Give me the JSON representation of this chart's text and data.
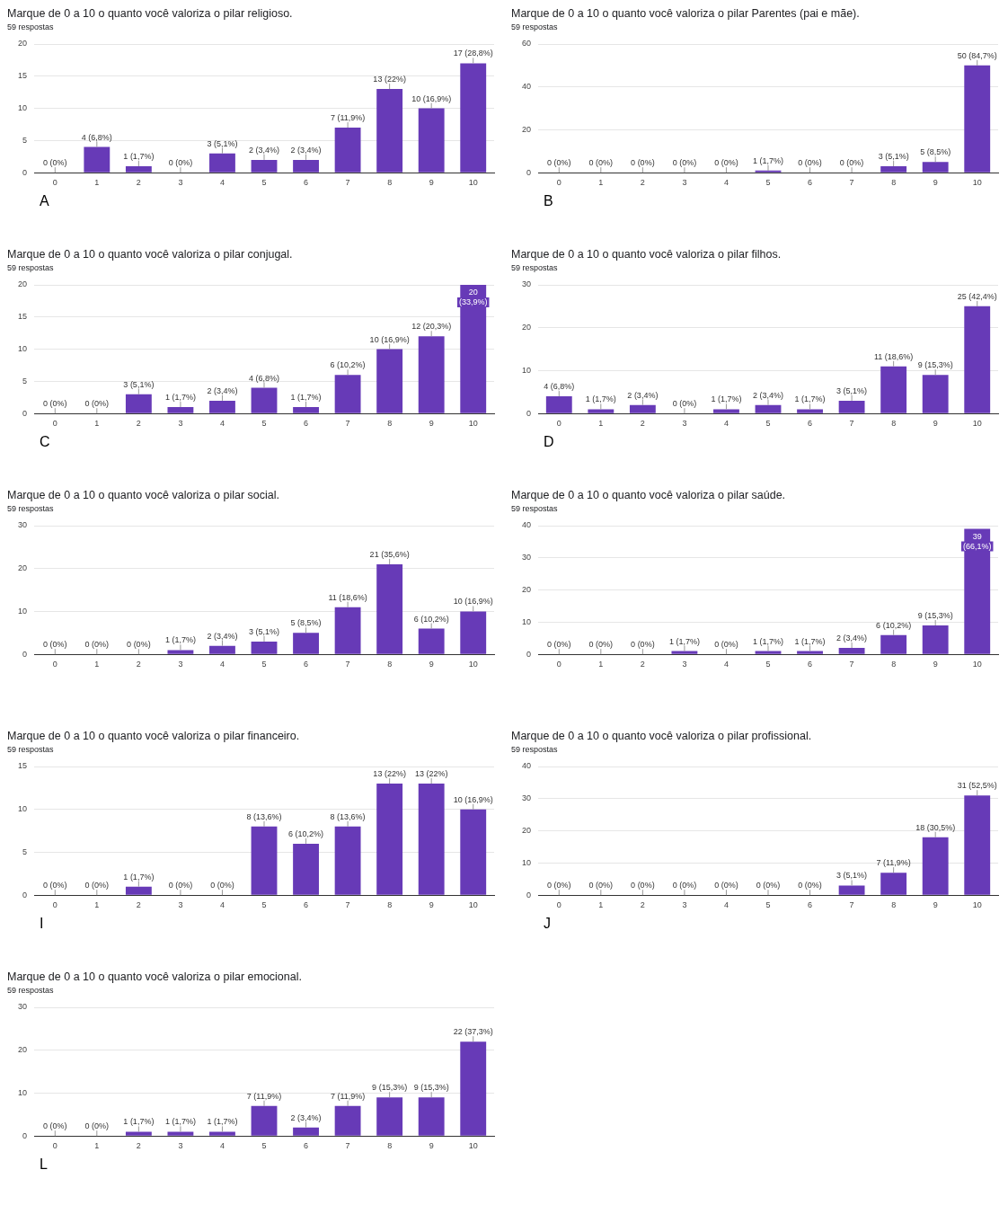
{
  "chart_data": [
    {
      "type": "bar",
      "title": "Marque de 0 a 10 o quanto você valoriza o pilar religioso.",
      "subtitle": "59 respostas",
      "categories": [
        "0",
        "1",
        "2",
        "3",
        "4",
        "5",
        "6",
        "7",
        "8",
        "9",
        "10"
      ],
      "values": [
        0,
        4,
        1,
        0,
        3,
        2,
        2,
        7,
        13,
        10,
        17
      ],
      "value_labels": [
        "0 (0%)",
        "4 (6,8%)",
        "1 (1,7%)",
        "0 (0%)",
        "3 (5,1%)",
        "2 (3,4%)",
        "2 (3,4%)",
        "7 (11,9%)",
        "13 (22%)",
        "10 (16,9%)",
        "17 (28,8%)"
      ],
      "color": "#673ab7",
      "ylim": [
        0,
        20
      ],
      "yticks": [
        0,
        5,
        10,
        15,
        20
      ],
      "grid": "y",
      "legend": false,
      "annotations": [
        "A"
      ]
    },
    {
      "type": "bar",
      "title": "Marque de 0 a 10 o quanto você valoriza o pilar Parentes (pai e mãe).",
      "subtitle": "59 respostas",
      "categories": [
        "0",
        "1",
        "2",
        "3",
        "4",
        "5",
        "6",
        "7",
        "8",
        "9",
        "10"
      ],
      "values": [
        0,
        0,
        0,
        0,
        0,
        1,
        0,
        0,
        3,
        5,
        50
      ],
      "value_labels": [
        "0 (0%)",
        "0 (0%)",
        "0 (0%)",
        "0 (0%)",
        "0 (0%)",
        "1 (1,7%)",
        "0 (0%)",
        "0 (0%)",
        "3 (5,1%)",
        "5 (8,5%)",
        "50 (84,7%)"
      ],
      "color": "#673ab7",
      "ylim": [
        0,
        60
      ],
      "yticks": [
        0,
        20,
        40,
        60
      ],
      "grid": "y",
      "legend": false,
      "annotations": [
        "B"
      ]
    },
    {
      "type": "bar",
      "title": "Marque de 0 a 10 o quanto você valoriza o pilar conjugal.",
      "subtitle": "59 respostas",
      "categories": [
        "0",
        "1",
        "2",
        "3",
        "4",
        "5",
        "6",
        "7",
        "8",
        "9",
        "10"
      ],
      "values": [
        0,
        0,
        3,
        1,
        2,
        4,
        1,
        6,
        10,
        12,
        20
      ],
      "value_labels": [
        "0 (0%)",
        "0 (0%)",
        "3 (5,1%)",
        "1 (1,7%)",
        "2 (3,4%)",
        "4 (6,8%)",
        "1 (1,7%)",
        "6 (10,2%)",
        "10 (16,9%)",
        "12 (20,3%)",
        "20 (33,9%)"
      ],
      "color": "#673ab7",
      "ylim": [
        0,
        20
      ],
      "yticks": [
        0,
        5,
        10,
        15,
        20
      ],
      "grid": "y",
      "legend": false,
      "annotations": [
        "C"
      ]
    },
    {
      "type": "bar",
      "title": "Marque de 0 a 10 o quanto você valoriza o pilar filhos.",
      "subtitle": "59 respostas",
      "categories": [
        "0",
        "1",
        "2",
        "3",
        "4",
        "5",
        "6",
        "7",
        "8",
        "9",
        "10"
      ],
      "values": [
        4,
        1,
        2,
        0,
        1,
        2,
        1,
        3,
        11,
        9,
        25
      ],
      "value_labels": [
        "4 (6,8%)",
        "1 (1,7%)",
        "2 (3,4%)",
        "0 (0%)",
        "1 (1,7%)",
        "2 (3,4%)",
        "1 (1,7%)",
        "3 (5,1%)",
        "11 (18,6%)",
        "9 (15,3%)",
        "25 (42,4%)"
      ],
      "color": "#673ab7",
      "ylim": [
        0,
        30
      ],
      "yticks": [
        0,
        10,
        20,
        30
      ],
      "grid": "y",
      "legend": false,
      "annotations": [
        "D"
      ]
    },
    {
      "type": "bar",
      "title": "Marque de 0 a 10 o quanto você valoriza o pilar social.",
      "subtitle": "59 respostas",
      "categories": [
        "0",
        "1",
        "2",
        "3",
        "4",
        "5",
        "6",
        "7",
        "8",
        "9",
        "10"
      ],
      "values": [
        0,
        0,
        0,
        1,
        2,
        3,
        5,
        11,
        21,
        6,
        10
      ],
      "value_labels": [
        "0 (0%)",
        "0 (0%)",
        "0 (0%)",
        "1 (1,7%)",
        "2 (3,4%)",
        "3 (5,1%)",
        "5 (8,5%)",
        "11 (18,6%)",
        "21 (35,6%)",
        "6 (10,2%)",
        "10 (16,9%)"
      ],
      "color": "#673ab7",
      "ylim": [
        0,
        30
      ],
      "yticks": [
        0,
        10,
        20,
        30
      ],
      "grid": "y",
      "legend": false
    },
    {
      "type": "bar",
      "title": "Marque de 0 a 10 o quanto você valoriza o pilar saúde.",
      "subtitle": "59 respostas",
      "categories": [
        "0",
        "1",
        "2",
        "3",
        "4",
        "5",
        "6",
        "7",
        "8",
        "9",
        "10"
      ],
      "values": [
        0,
        0,
        0,
        1,
        0,
        1,
        1,
        2,
        6,
        9,
        39
      ],
      "value_labels": [
        "0 (0%)",
        "0 (0%)",
        "0 (0%)",
        "1 (1,7%)",
        "0 (0%)",
        "1 (1,7%)",
        "1 (1,7%)",
        "2 (3,4%)",
        "6 (10,2%)",
        "9 (15,3%)",
        "39 (66,1%)"
      ],
      "color": "#673ab7",
      "ylim": [
        0,
        40
      ],
      "yticks": [
        0,
        10,
        20,
        30,
        40
      ],
      "grid": "y",
      "legend": false
    },
    {
      "type": "bar",
      "title": "Marque de 0 a 10 o quanto você valoriza o pilar financeiro.",
      "subtitle": "59 respostas",
      "categories": [
        "0",
        "1",
        "2",
        "3",
        "4",
        "5",
        "6",
        "7",
        "8",
        "9",
        "10"
      ],
      "values": [
        0,
        0,
        1,
        0,
        0,
        8,
        6,
        8,
        13,
        13,
        10
      ],
      "value_labels": [
        "0 (0%)",
        "0 (0%)",
        "1 (1,7%)",
        "0 (0%)",
        "0 (0%)",
        "8 (13,6%)",
        "6 (10,2%)",
        "8 (13,6%)",
        "13 (22%)",
        "13 (22%)",
        "10 (16,9%)"
      ],
      "color": "#673ab7",
      "ylim": [
        0,
        15
      ],
      "yticks": [
        0,
        5,
        10,
        15
      ],
      "grid": "y",
      "legend": false,
      "annotations": [
        "I"
      ]
    },
    {
      "type": "bar",
      "title": "Marque de 0 a 10 o quanto você valoriza o pilar profissional.",
      "subtitle": "59 respostas",
      "categories": [
        "0",
        "1",
        "2",
        "3",
        "4",
        "5",
        "6",
        "7",
        "8",
        "9",
        "10"
      ],
      "values": [
        0,
        0,
        0,
        0,
        0,
        0,
        0,
        3,
        7,
        18,
        31
      ],
      "value_labels": [
        "0 (0%)",
        "0 (0%)",
        "0 (0%)",
        "0 (0%)",
        "0 (0%)",
        "0 (0%)",
        "0 (0%)",
        "3 (5,1%)",
        "7 (11,9%)",
        "18 (30,5%)",
        "31 (52,5%)"
      ],
      "color": "#673ab7",
      "ylim": [
        0,
        40
      ],
      "yticks": [
        0,
        10,
        20,
        30,
        40
      ],
      "grid": "y",
      "legend": false,
      "annotations": [
        "J"
      ]
    },
    {
      "type": "bar",
      "title": "Marque de 0 a 10 o quanto você valoriza o pilar emocional.",
      "subtitle": "59 respostas",
      "categories": [
        "0",
        "1",
        "2",
        "3",
        "4",
        "5",
        "6",
        "7",
        "8",
        "9",
        "10"
      ],
      "values": [
        0,
        0,
        1,
        1,
        1,
        7,
        2,
        7,
        9,
        9,
        22
      ],
      "value_labels": [
        "0 (0%)",
        "0 (0%)",
        "1 (1,7%)",
        "1 (1,7%)",
        "1 (1,7%)",
        "7 (11,9%)",
        "2 (3,4%)",
        "7 (11,9%)",
        "9 (15,3%)",
        "9 (15,3%)",
        "22 (37,3%)"
      ],
      "color": "#673ab7",
      "ylim": [
        0,
        30
      ],
      "yticks": [
        0,
        10,
        20,
        30
      ],
      "grid": "y",
      "legend": false,
      "annotations": [
        "L"
      ]
    }
  ]
}
